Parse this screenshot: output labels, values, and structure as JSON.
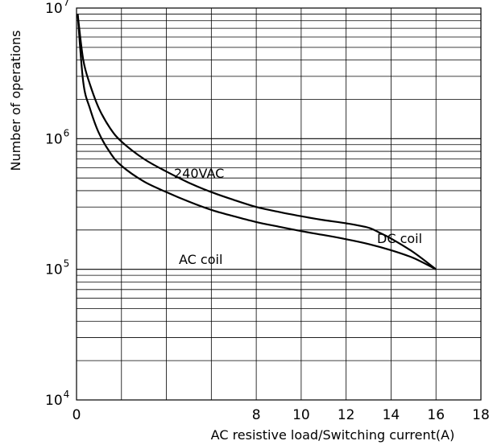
{
  "chart_data": {
    "type": "line",
    "title": "",
    "xlabel": "AC resistive load/Switching current(A)",
    "ylabel": "Number of operations",
    "xlim": [
      0,
      18
    ],
    "ylim": [
      10000,
      10000000
    ],
    "yscale": "log",
    "grid": true,
    "x_ticks": [
      0,
      8,
      10,
      12,
      14,
      16,
      18
    ],
    "x_tick_labels": [
      "0",
      "8",
      "10",
      "12",
      "14",
      "16",
      "18"
    ],
    "y_ticks": [
      {
        "value": 10000,
        "base": "10",
        "exp": "4"
      },
      {
        "value": 100000,
        "base": "10",
        "exp": "5"
      },
      {
        "value": 1000000,
        "base": "10",
        "exp": "6"
      },
      {
        "value": 10000000,
        "base": "10",
        "exp": "7"
      }
    ],
    "annotations": [
      "240VAC",
      "DC coil",
      "AC coil"
    ],
    "series": [
      {
        "x": [
          0.05,
          0.3,
          0.6,
          1,
          1.5,
          2,
          3,
          4,
          5,
          6,
          7,
          8,
          9,
          10,
          11,
          12,
          13,
          13.5,
          14,
          15,
          16
        ],
        "y": [
          9000000,
          4000000,
          2600000,
          1700000,
          1200000,
          950000,
          700000,
          560000,
          460000,
          390000,
          340000,
          300000,
          275000,
          255000,
          238000,
          225000,
          208000,
          190000,
          172000,
          135000,
          100000
        ]
      },
      {
        "x": [
          0.05,
          0.3,
          0.6,
          1,
          1.5,
          2,
          3,
          4,
          5,
          6,
          7,
          8,
          9,
          10,
          11,
          12,
          13,
          14,
          15,
          16
        ],
        "y": [
          9000000,
          2700000,
          1700000,
          1100000,
          780000,
          620000,
          470000,
          390000,
          330000,
          285000,
          255000,
          230000,
          212000,
          196000,
          183000,
          170000,
          156000,
          140000,
          122000,
          100000
        ]
      }
    ]
  }
}
